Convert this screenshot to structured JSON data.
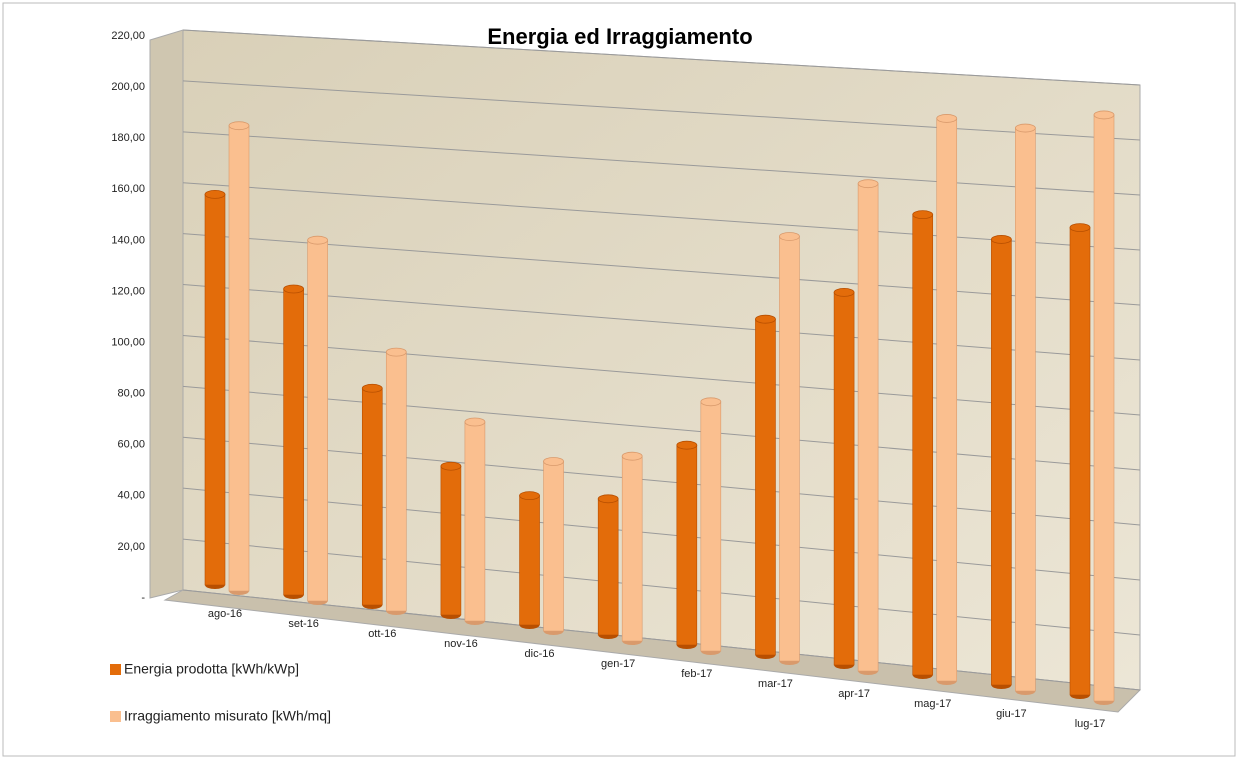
{
  "chart_data": {
    "type": "bar3d",
    "title": "Energia ed Irraggiamento",
    "categories": [
      "ago-16",
      "set-16",
      "ott-16",
      "nov-16",
      "dic-16",
      "gen-17",
      "feb-17",
      "mar-17",
      "apr-17",
      "mag-17",
      "giu-17",
      "lug-17"
    ],
    "series": [
      {
        "name": "Energia prodotta [kWh/kWp]",
        "color": "#e36c0a",
        "values": [
          155,
          120,
          84,
          57,
          49,
          51,
          74,
          123,
          135,
          165,
          158,
          164
        ]
      },
      {
        "name": "Irraggiamento misurato [kWh/mq]",
        "color": "#fabf8f",
        "values": [
          184,
          141,
          100,
          76,
          64,
          69,
          92,
          155,
          176,
          201,
          199,
          205
        ]
      }
    ],
    "ylim": [
      0,
      220
    ],
    "yticks": [
      {
        "value": 0,
        "label": "-"
      },
      {
        "value": 20,
        "label": "20,00"
      },
      {
        "value": 40,
        "label": "40,00"
      },
      {
        "value": 60,
        "label": "60,00"
      },
      {
        "value": 80,
        "label": "80,00"
      },
      {
        "value": 100,
        "label": "100,00"
      },
      {
        "value": 120,
        "label": "120,00"
      },
      {
        "value": 140,
        "label": "140,00"
      },
      {
        "value": 160,
        "label": "160,00"
      },
      {
        "value": 180,
        "label": "180,00"
      },
      {
        "value": 200,
        "label": "200,00"
      },
      {
        "value": 220,
        "label": "220,00"
      }
    ],
    "grid": true,
    "legend": "bottom-left"
  }
}
